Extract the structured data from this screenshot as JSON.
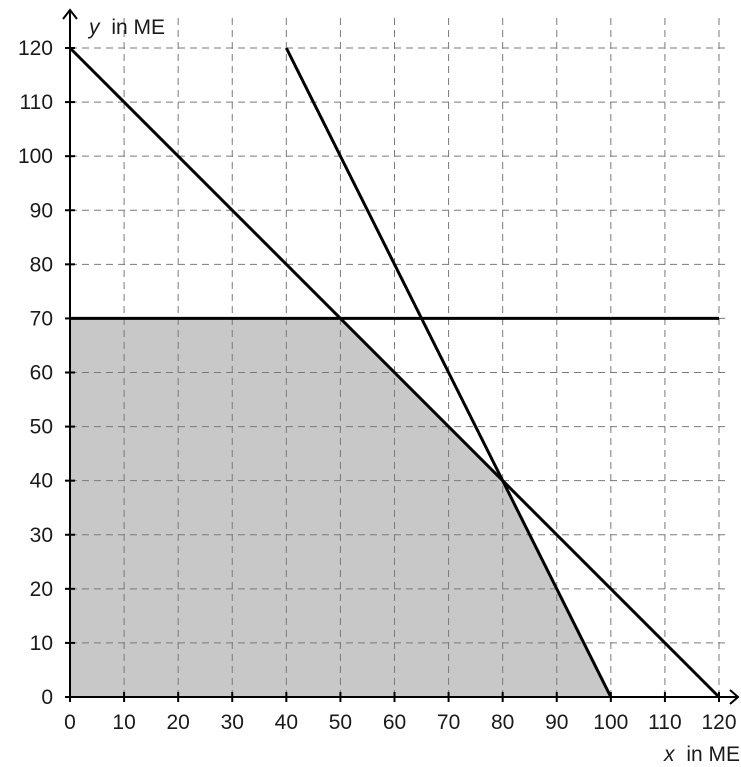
{
  "chart_data": {
    "type": "line",
    "xlabel": {
      "var": "x",
      "unit": "in ME"
    },
    "ylabel": {
      "var": "y",
      "unit": "in ME"
    },
    "xlim": [
      0,
      120
    ],
    "ylim": [
      0,
      120
    ],
    "xticks": [
      0,
      10,
      20,
      30,
      40,
      50,
      60,
      70,
      80,
      90,
      100,
      110,
      120
    ],
    "yticks": [
      0,
      10,
      20,
      30,
      40,
      50,
      60,
      70,
      80,
      90,
      100,
      110,
      120
    ],
    "grid": true,
    "series": [
      {
        "points": [
          [
            0,
            120
          ],
          [
            120,
            0
          ]
        ]
      },
      {
        "points": [
          [
            40,
            120
          ],
          [
            100,
            0
          ]
        ]
      },
      {
        "points": [
          [
            0,
            70
          ],
          [
            120,
            70
          ]
        ]
      }
    ],
    "shaded_region": {
      "fill": "#c8c8c8",
      "vertices": [
        [
          0,
          0
        ],
        [
          0,
          70
        ],
        [
          50,
          70
        ],
        [
          80,
          40
        ],
        [
          100,
          0
        ]
      ]
    },
    "colors": {
      "line": "#000000",
      "grid": "#7a7a7a",
      "shade": "#c8c8c8"
    }
  }
}
